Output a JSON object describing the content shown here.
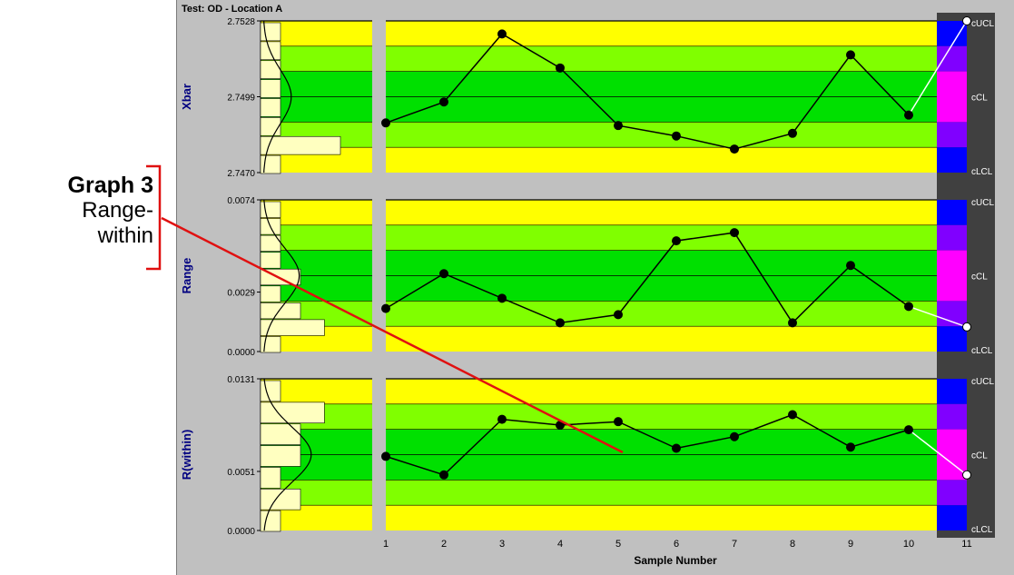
{
  "window": {
    "title": "Test: OD - Location A"
  },
  "annotation": {
    "heading": "Graph 3",
    "line1": "Range-",
    "line2": "within",
    "color": "#e01010"
  },
  "colors": {
    "panel_bg": "#c0c0c0",
    "zone_outer": "#ffff00",
    "zone_middle": "#80ff00",
    "zone_inner": "#00e000",
    "hist_bar": "#ffffc0",
    "axis_label": "#000080",
    "cap_blue": "#0000ff",
    "cap_violet": "#8000ff",
    "cap_magenta": "#ff00ff",
    "cap_bg": "#404040",
    "line": "#000000",
    "last_point": "#ffffff"
  },
  "chart_data": [
    {
      "type": "line",
      "name": "Xbar",
      "ylabel": "Xbar",
      "xlabel": "Sample Number",
      "ylim": [
        2.747,
        2.7528
      ],
      "y_ticks": [
        "2.7528",
        "2.7499",
        "2.7470"
      ],
      "y_tick_values": [
        2.7528,
        2.7499,
        2.747
      ],
      "control_labels": [
        "cUCL",
        "cCL",
        "cLCL"
      ],
      "x": [
        1,
        2,
        3,
        4,
        5,
        6,
        7,
        8,
        9,
        10,
        11
      ],
      "values": [
        2.7489,
        2.7497,
        2.7523,
        2.751,
        2.7488,
        2.7484,
        2.7479,
        2.7485,
        2.7515,
        2.7492,
        2.7528
      ],
      "histogram": [
        0.25,
        0.25,
        0.25,
        0.25,
        0.25,
        0.25,
        1.0,
        0.25
      ],
      "curve_peak": 0.35
    },
    {
      "type": "line",
      "name": "Range",
      "ylabel": "Range",
      "xlabel": "Sample Number",
      "ylim": [
        0.0,
        0.0074
      ],
      "y_ticks": [
        "0.0074",
        "0.0029",
        "0.0000"
      ],
      "y_tick_values": [
        0.0074,
        0.0029,
        0.0
      ],
      "control_labels": [
        "cUCL",
        "cCL",
        "cLCL"
      ],
      "x": [
        1,
        2,
        3,
        4,
        5,
        6,
        7,
        8,
        9,
        10,
        11
      ],
      "values": [
        0.0021,
        0.0038,
        0.0026,
        0.0014,
        0.0018,
        0.0054,
        0.0058,
        0.0014,
        0.0042,
        0.0022,
        0.0012
      ],
      "histogram": [
        0.25,
        0.25,
        0.25,
        0.25,
        0.5,
        0.25,
        0.5,
        0.8,
        0.25
      ],
      "curve_peak": 0.45
    },
    {
      "type": "line",
      "name": "R(within)",
      "ylabel": "R(within)",
      "xlabel": "Sample Number",
      "ylim": [
        0.0,
        0.0131
      ],
      "y_ticks": [
        "0.0131",
        "0.0051",
        "0.0000"
      ],
      "y_tick_values": [
        0.0131,
        0.0051,
        0.0
      ],
      "control_labels": [
        "cUCL",
        "cCL",
        "cLCL"
      ],
      "x": [
        1,
        2,
        3,
        4,
        5,
        6,
        7,
        8,
        9,
        10,
        11
      ],
      "values": [
        0.0064,
        0.0048,
        0.0096,
        0.0091,
        0.0094,
        0.0071,
        0.0081,
        0.01,
        0.0072,
        0.0087,
        0.0048
      ],
      "histogram": [
        0.25,
        0.8,
        0.5,
        0.5,
        0.25,
        0.5,
        0.25
      ],
      "curve_peak": 0.6
    }
  ],
  "x_ticks": [
    "1",
    "2",
    "3",
    "4",
    "5",
    "6",
    "7",
    "8",
    "9",
    "10",
    "11"
  ]
}
